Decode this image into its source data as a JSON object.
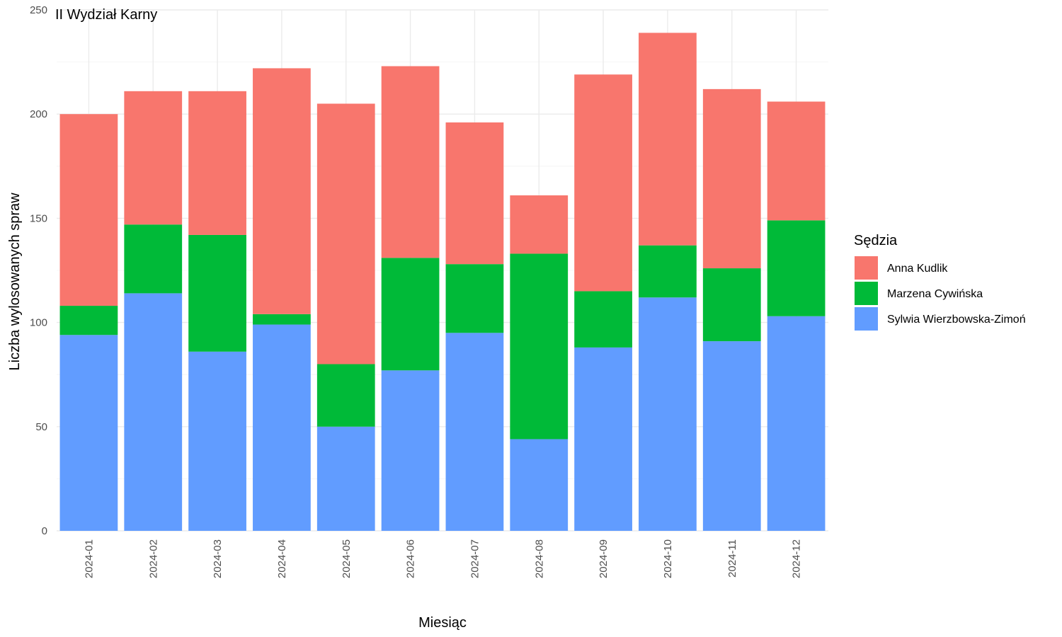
{
  "chart_data": {
    "type": "bar",
    "stacked": true,
    "title": "II Wydział Karny",
    "xlabel": "Miesiąc",
    "ylabel": "Liczba wylosowanych spraw",
    "ylim": [
      0,
      250
    ],
    "yticks": [
      0,
      50,
      100,
      150,
      200,
      250
    ],
    "grid": true,
    "legend_position": "right",
    "legend_title": "Sędzia",
    "categories": [
      "2024-01",
      "2024-02",
      "2024-03",
      "2024-04",
      "2024-05",
      "2024-06",
      "2024-07",
      "2024-08",
      "2024-09",
      "2024-10",
      "2024-11",
      "2024-12"
    ],
    "series": [
      {
        "name": "Sylwia Wierzbowska-Zimoń",
        "color": "#619CFF",
        "values": [
          94,
          114,
          86,
          99,
          50,
          77,
          95,
          44,
          88,
          112,
          91,
          103
        ]
      },
      {
        "name": "Marzena Cywińska",
        "color": "#00BA38",
        "values": [
          14,
          33,
          56,
          5,
          30,
          54,
          33,
          89,
          27,
          25,
          35,
          46
        ]
      },
      {
        "name": "Anna Kudlik",
        "color": "#F8766D",
        "values": [
          92,
          64,
          69,
          118,
          125,
          92,
          68,
          28,
          104,
          102,
          86,
          57
        ]
      }
    ],
    "legend_order": [
      "Anna Kudlik",
      "Marzena Cywińska",
      "Sylwia Wierzbowska-Zimoń"
    ]
  }
}
